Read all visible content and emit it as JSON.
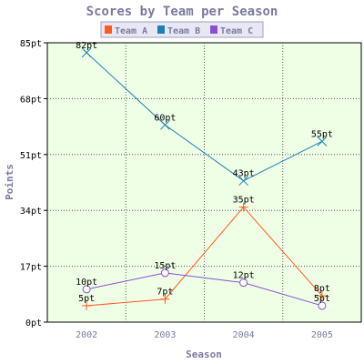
{
  "chart_data": {
    "type": "line",
    "title": "Scores by Team per Season",
    "xlabel": "Season",
    "ylabel": "Points",
    "categories": [
      "2002",
      "2003",
      "2004",
      "2005"
    ],
    "y_ticks": [
      "0pt",
      "17pt",
      "34pt",
      "51pt",
      "68pt",
      "85pt"
    ],
    "ylim": [
      0,
      85
    ],
    "grid": true,
    "legend_position": "top",
    "plot_background": "#eeffe6",
    "series": [
      {
        "name": "Team A",
        "color": "#ff5a1e",
        "marker": "plus",
        "values": [
          5,
          7,
          35,
          8
        ],
        "labels": [
          "5pt",
          "7pt",
          "35pt",
          "8pt"
        ]
      },
      {
        "name": "Team B",
        "color": "#1e7eb4",
        "marker": "cross",
        "values": [
          82,
          60,
          43,
          55
        ],
        "labels": [
          "82pt",
          "60pt",
          "43pt",
          "55pt"
        ]
      },
      {
        "name": "Team C",
        "color": "#8a4fd0",
        "marker": "circle",
        "values": [
          10,
          15,
          12,
          5
        ],
        "labels": [
          "10pt",
          "15pt",
          "12pt",
          "5pt"
        ]
      }
    ]
  }
}
